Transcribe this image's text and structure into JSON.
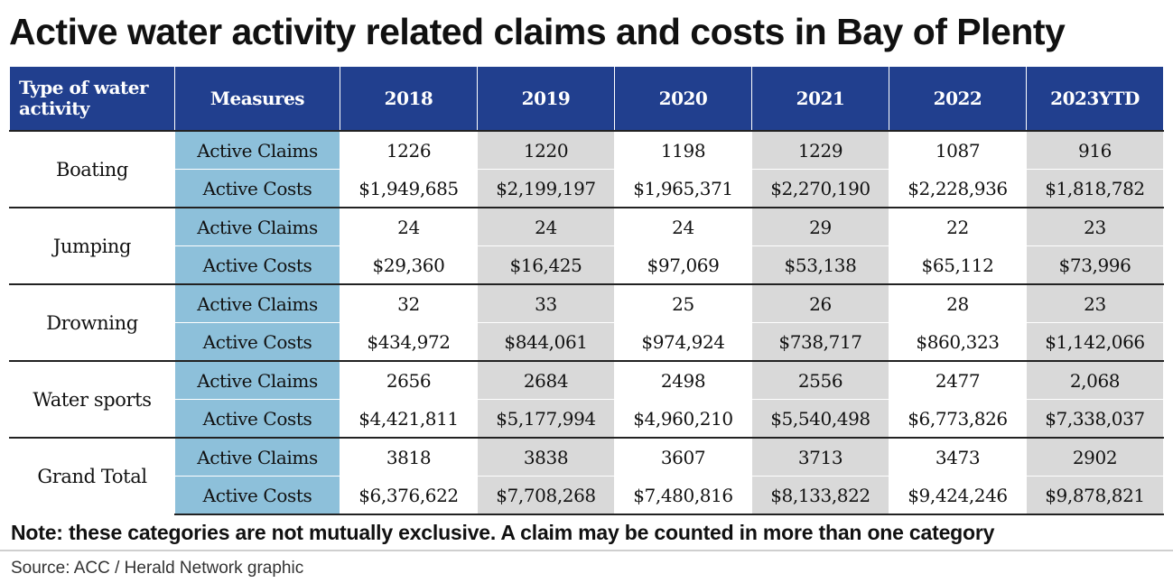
{
  "title": "Active water activity related claims and costs in Bay of Plenty",
  "note": "Note: these categories are not mutually exclusive. A claim may be counted in more than one category",
  "source": "Source: ACC / Herald Network graphic",
  "colors": {
    "header_bg": "#213f8e",
    "measure_bg": "#8dc0da",
    "alt_column_bg": "#d9d9d9"
  },
  "chart_data": {
    "type": "table",
    "columns": [
      "Type of water activity",
      "Measures",
      "2018",
      "2019",
      "2020",
      "2021",
      "2022",
      "2023YTD"
    ],
    "groups": [
      {
        "activity": "Boating",
        "rows": [
          {
            "measure": "Active Claims",
            "values": [
              "1226",
              "1220",
              "1198",
              "1229",
              "1087",
              "916"
            ]
          },
          {
            "measure": "Active Costs",
            "values": [
              "$1,949,685",
              "$2,199,197",
              "$1,965,371",
              "$2,270,190",
              "$2,228,936",
              "$1,818,782"
            ]
          }
        ]
      },
      {
        "activity": "Jumping",
        "rows": [
          {
            "measure": "Active Claims",
            "values": [
              "24",
              "24",
              "24",
              "29",
              "22",
              "23"
            ]
          },
          {
            "measure": "Active Costs",
            "values": [
              "$29,360",
              "$16,425",
              "$97,069",
              "$53,138",
              "$65,112",
              "$73,996"
            ]
          }
        ]
      },
      {
        "activity": "Drowning",
        "rows": [
          {
            "measure": "Active Claims",
            "values": [
              "32",
              "33",
              "25",
              "26",
              "28",
              "23"
            ]
          },
          {
            "measure": "Active Costs",
            "values": [
              "$434,972",
              "$844,061",
              "$974,924",
              "$738,717",
              "$860,323",
              "$1,142,066"
            ]
          }
        ]
      },
      {
        "activity": "Water sports",
        "rows": [
          {
            "measure": "Active Claims",
            "values": [
              "2656",
              "2684",
              "2498",
              "2556",
              "2477",
              "2,068"
            ]
          },
          {
            "measure": "Active Costs",
            "values": [
              "$4,421,811",
              "$5,177,994",
              "$4,960,210",
              "$5,540,498",
              "$6,773,826",
              "$7,338,037"
            ]
          }
        ]
      },
      {
        "activity": "Grand Total",
        "rows": [
          {
            "measure": "Active Claims",
            "values": [
              "3818",
              "3838",
              "3607",
              "3713",
              "3473",
              "2902"
            ]
          },
          {
            "measure": "Active Costs",
            "values": [
              "$6,376,622",
              "$7,708,268",
              "$7,480,816",
              "$8,133,822",
              "$9,424,246",
              "$9,878,821"
            ]
          }
        ]
      }
    ]
  }
}
